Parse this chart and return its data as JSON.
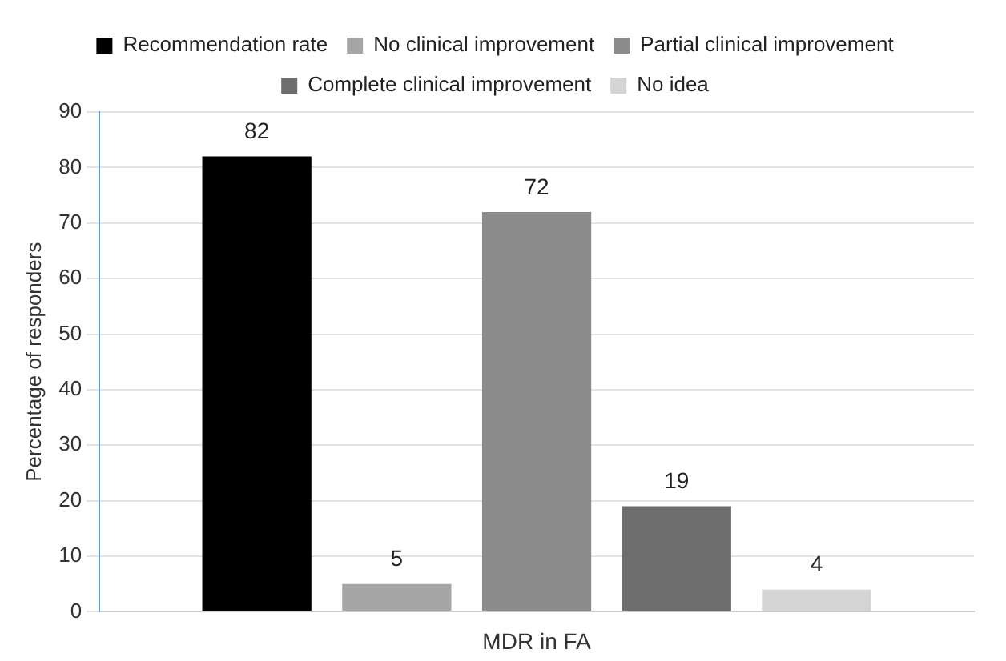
{
  "chart_data": {
    "type": "bar",
    "ylabel": "Percentage of responders",
    "categories": [
      "MDR in FA"
    ],
    "series": [
      {
        "name": "Recommendation rate",
        "color": "#000000",
        "values": [
          82
        ]
      },
      {
        "name": "No clinical improvement",
        "color": "#a6a6a6",
        "values": [
          5
        ]
      },
      {
        "name": "Partial clinical improvement",
        "color": "#8c8c8c",
        "values": [
          72
        ]
      },
      {
        "name": "Complete clinical improvement",
        "color": "#6e6e6e",
        "values": [
          19
        ]
      },
      {
        "name": "No idea",
        "color": "#d4d4d4",
        "values": [
          4
        ]
      }
    ],
    "ylim": [
      0,
      90
    ],
    "yticks": [
      0,
      10,
      20,
      30,
      40,
      50,
      60,
      70,
      80,
      90
    ],
    "grid": "y",
    "legend": "top",
    "data_labels": true
  }
}
